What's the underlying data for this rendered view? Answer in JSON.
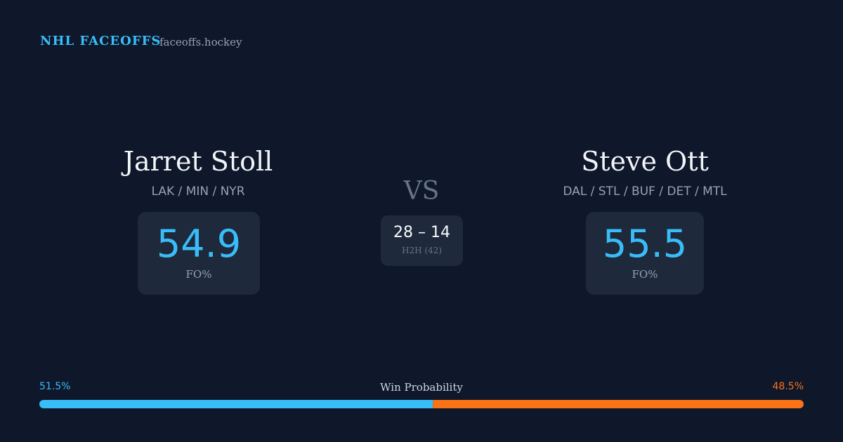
{
  "header": {
    "brand": "NHL FACEOFFS",
    "site": "faceoffs.hockey"
  },
  "players": [
    {
      "name": "Jarret Stoll",
      "teams": "LAK / MIN / NYR",
      "fo_pct": 54.9,
      "fo_label": "FO%"
    },
    {
      "name": "Steve Ott",
      "teams": "DAL / STL / BUF / DET / MTL",
      "fo_pct": 55.5,
      "fo_label": "FO%"
    }
  ],
  "vs": "VS",
  "h2h": {
    "score": "28 – 14",
    "label": "H2H (42)"
  },
  "win_probability": {
    "label": "Win Probability",
    "values": [
      51.5,
      48.5
    ],
    "value_labels": [
      "51.5%",
      "48.5%"
    ],
    "colors": [
      "#38bdf8",
      "#f97316"
    ]
  }
}
